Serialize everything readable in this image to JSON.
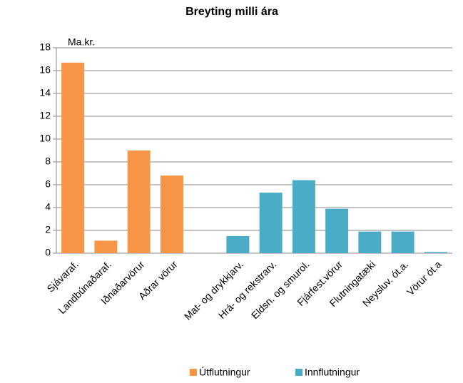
{
  "chart_data": {
    "type": "bar",
    "title": "Breyting milli ára",
    "y_label": "Ma.kr.",
    "categories": [
      "Sjávaraf.",
      "Landbúnaðaraf.",
      "Iðnaðarvörur",
      "Aðrar vörur",
      null,
      "Mat- og drykkjarv.",
      "Hrá- og rekstrarv.",
      "Eldsn. og smurol.",
      "Fjárfest.vörur",
      "Flutningatæki",
      "Neysluv. ót.a.",
      "Vörur ót.a"
    ],
    "series": [
      {
        "name": "Útflutningur",
        "color": "#f79646",
        "values": [
          16.7,
          1.1,
          9.0,
          6.8,
          null,
          null,
          null,
          null,
          null,
          null,
          null,
          null
        ]
      },
      {
        "name": "Innflutningur",
        "color": "#4bacc6",
        "values": [
          null,
          null,
          null,
          null,
          null,
          1.5,
          5.3,
          6.4,
          3.9,
          1.9,
          1.9,
          0.1
        ]
      }
    ],
    "ylim": [
      0,
      18
    ],
    "yticks": [
      0,
      2,
      4,
      6,
      8,
      10,
      12,
      14,
      16,
      18
    ],
    "grid": true,
    "legend": "bottom"
  }
}
